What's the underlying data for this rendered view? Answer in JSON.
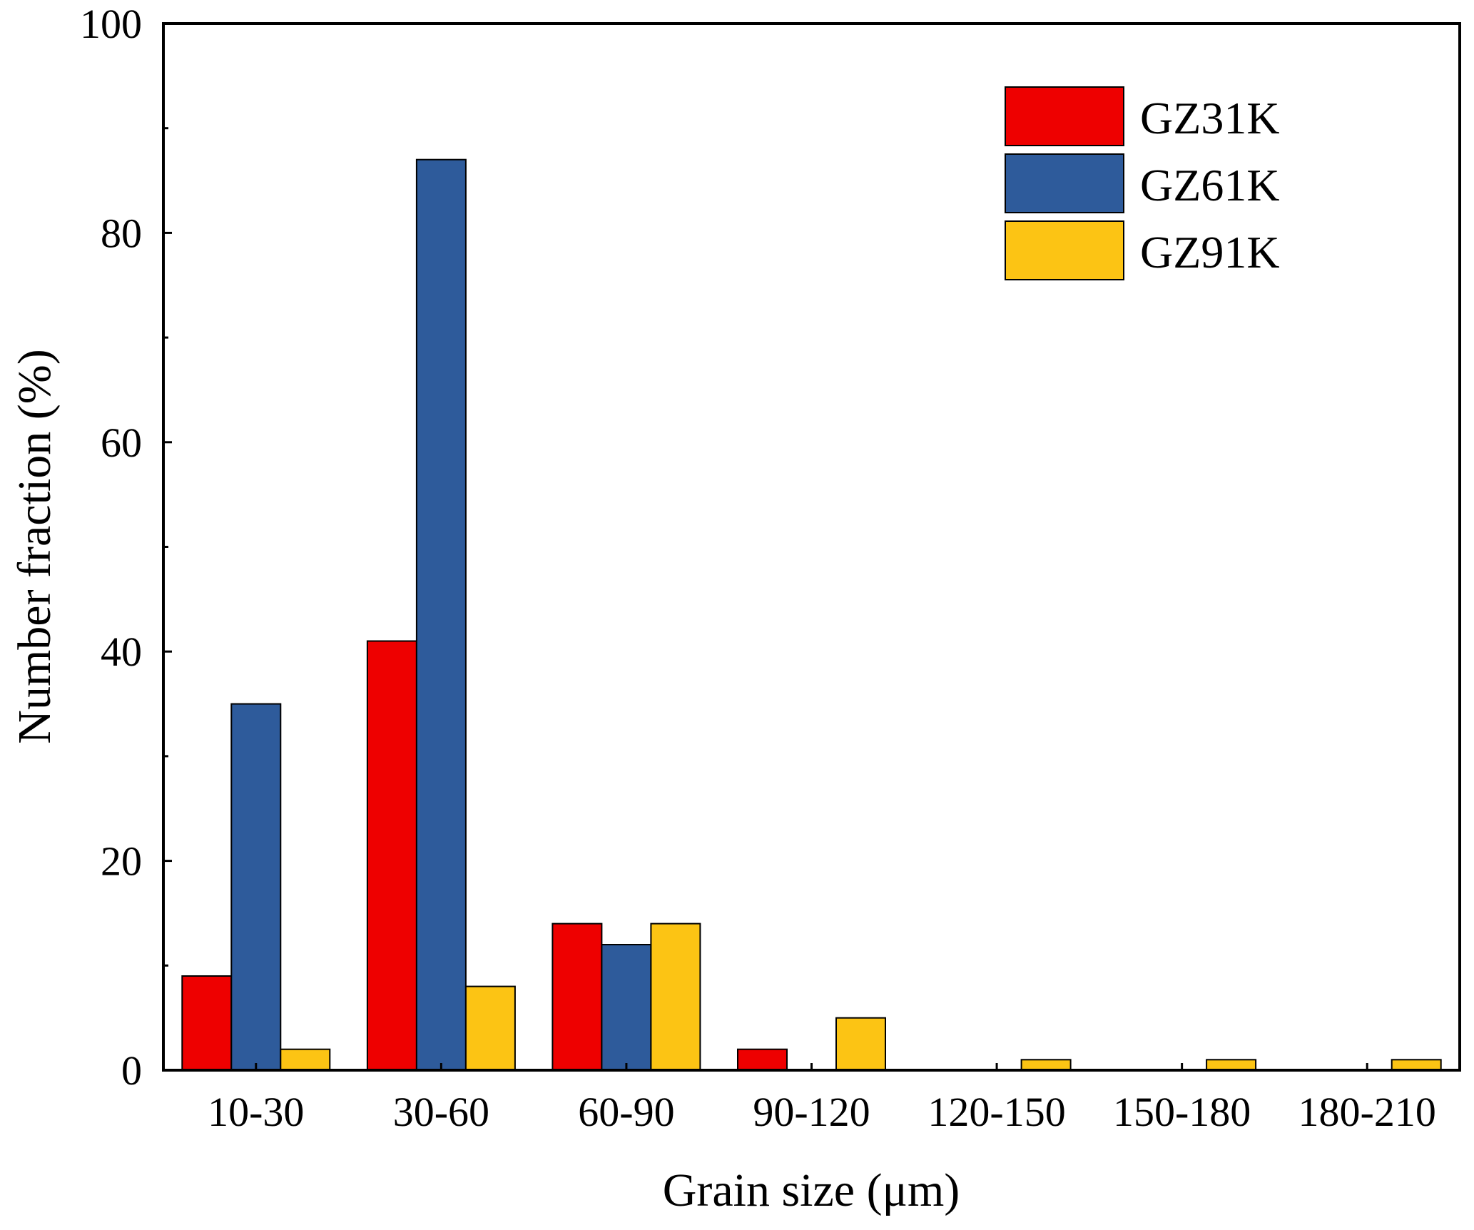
{
  "chart_data": {
    "type": "bar",
    "title": "",
    "xlabel": "Grain size (μm)",
    "ylabel": "Number fraction (%)",
    "categories": [
      "10-30",
      "30-60",
      "60-90",
      "90-120",
      "120-150",
      "150-180",
      "180-210"
    ],
    "series": [
      {
        "name": "GZ31K",
        "color": "#ee0000",
        "values": [
          9,
          41,
          14,
          2,
          0,
          0,
          0
        ]
      },
      {
        "name": "GZ61K",
        "color": "#2e5b9b",
        "values": [
          35,
          87,
          12,
          0,
          0,
          0,
          0
        ]
      },
      {
        "name": "GZ91K",
        "color": "#fcc414",
        "values": [
          2,
          8,
          14,
          5,
          1,
          1,
          1
        ]
      }
    ],
    "ylim": [
      0,
      100
    ],
    "yticks": [
      0,
      20,
      40,
      60,
      80,
      100
    ],
    "ytick_labels": [
      "0",
      "20",
      "40",
      "60",
      "80",
      "100"
    ],
    "grid": false,
    "legend_position": "top-right"
  }
}
